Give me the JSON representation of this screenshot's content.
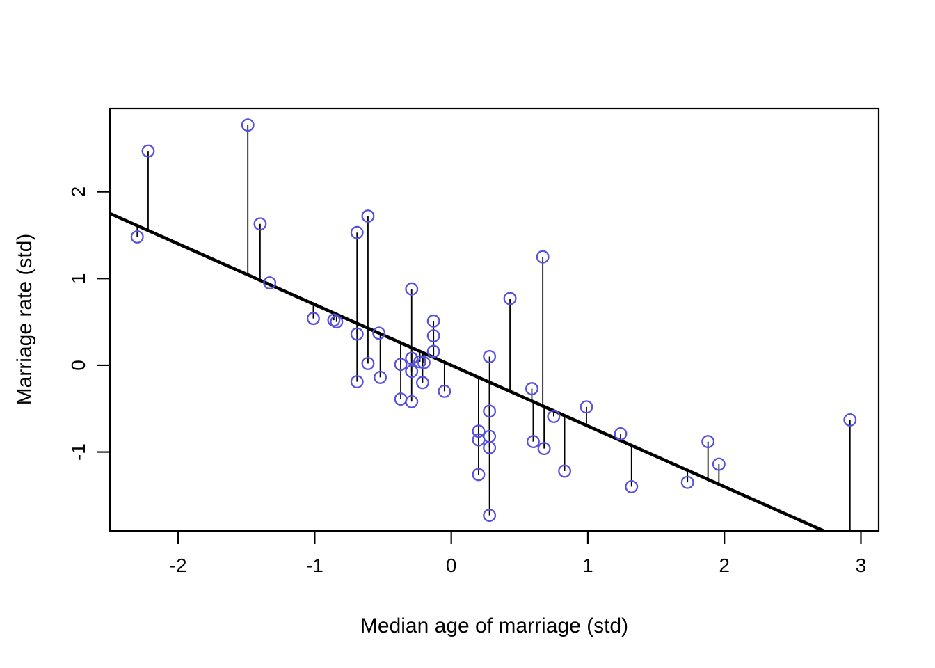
{
  "chart_data": {
    "type": "scatter",
    "title": "",
    "xlabel": "Median age of marriage (std)",
    "ylabel": "Marriage rate (std)",
    "xlim": [
      -2.5,
      3.13
    ],
    "ylim": [
      -1.91,
      2.96
    ],
    "x_ticks": [
      "-2",
      "-1",
      "0",
      "1",
      "2",
      "3"
    ],
    "x_tick_values": [
      -2,
      -1,
      0,
      1,
      2,
      3
    ],
    "y_ticks": [
      "-1",
      "0",
      "1",
      "2"
    ],
    "y_tick_values": [
      -1,
      0,
      1,
      2
    ],
    "grid": false,
    "legend_position": "none",
    "point_style": "open-circle",
    "point_color": "#5752DE",
    "line_color": "#000000",
    "residual_color": "#000000",
    "regression_line": {
      "slope": -0.7,
      "intercept": 0,
      "clipped_to_plot": true
    },
    "residual_segments": true,
    "points": [
      [
        -2.22,
        2.47
      ],
      [
        -2.3,
        1.48
      ],
      [
        -1.49,
        2.77
      ],
      [
        -1.4,
        1.63
      ],
      [
        -1.33,
        0.95
      ],
      [
        -1.01,
        0.54
      ],
      [
        -0.86,
        0.52
      ],
      [
        -0.84,
        0.5
      ],
      [
        -0.69,
        1.53
      ],
      [
        -0.61,
        1.72
      ],
      [
        -0.69,
        0.36
      ],
      [
        -0.53,
        0.37
      ],
      [
        -0.61,
        0.02
      ],
      [
        -0.52,
        -0.14
      ],
      [
        -0.69,
        -0.19
      ],
      [
        -0.37,
        0.01
      ],
      [
        -0.37,
        -0.39
      ],
      [
        -0.29,
        0.88
      ],
      [
        -0.29,
        0.08
      ],
      [
        -0.29,
        -0.07
      ],
      [
        -0.29,
        -0.42
      ],
      [
        -0.23,
        0.04
      ],
      [
        -0.2,
        0.03
      ],
      [
        -0.21,
        -0.2
      ],
      [
        -0.13,
        0.51
      ],
      [
        -0.13,
        0.34
      ],
      [
        -0.13,
        0.16
      ],
      [
        -0.05,
        -0.3
      ],
      [
        0.28,
        0.1
      ],
      [
        0.28,
        -0.53
      ],
      [
        0.2,
        -0.76
      ],
      [
        0.2,
        -0.86
      ],
      [
        0.28,
        -0.82
      ],
      [
        0.28,
        -0.95
      ],
      [
        0.2,
        -1.26
      ],
      [
        0.28,
        -1.73
      ],
      [
        0.43,
        0.77
      ],
      [
        0.67,
        1.25
      ],
      [
        0.59,
        -0.27
      ],
      [
        0.6,
        -0.88
      ],
      [
        0.68,
        -0.96
      ],
      [
        0.75,
        -0.59
      ],
      [
        0.83,
        -1.22
      ],
      [
        0.99,
        -0.48
      ],
      [
        1.24,
        -0.79
      ],
      [
        1.32,
        -1.4
      ],
      [
        1.73,
        -1.35
      ],
      [
        1.88,
        -0.88
      ],
      [
        1.96,
        -1.14
      ],
      [
        2.92,
        -0.63
      ]
    ]
  }
}
